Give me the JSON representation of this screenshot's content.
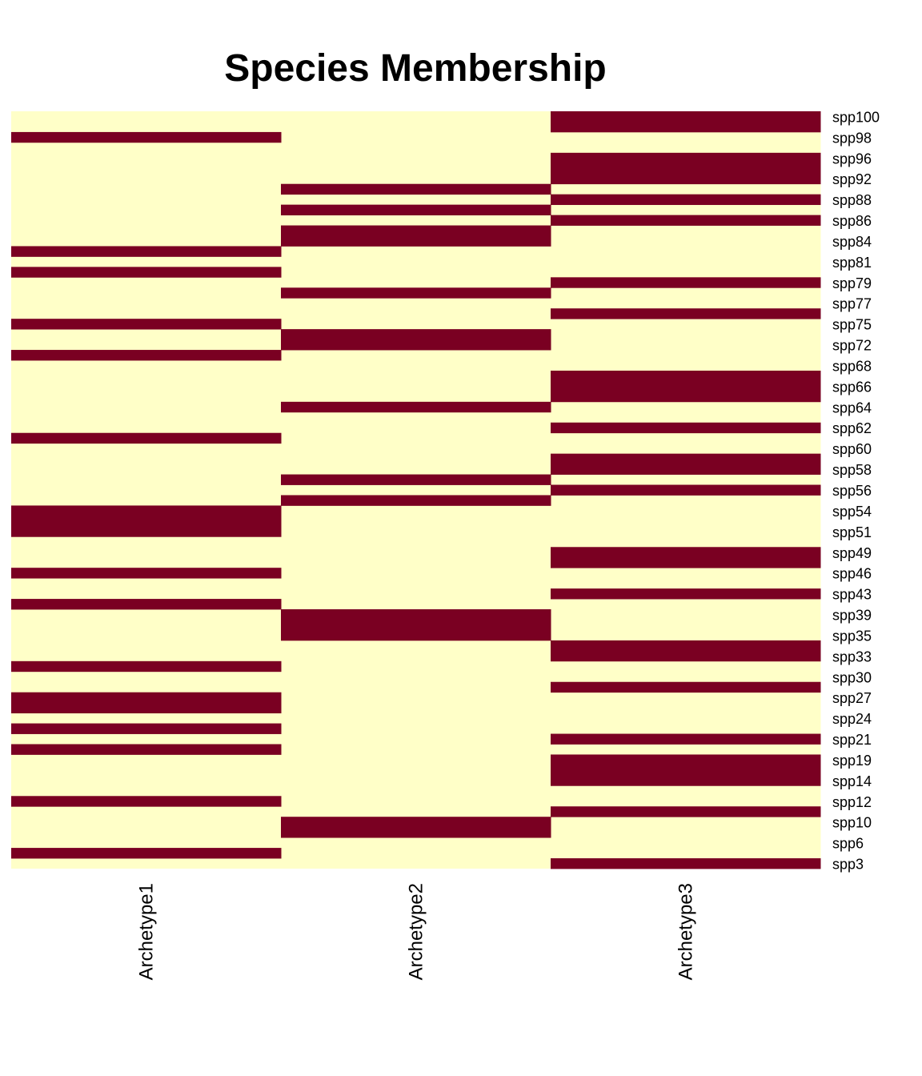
{
  "chart_data": {
    "type": "heatmap",
    "title": "Species Membership",
    "xlabel": "",
    "ylabel": "",
    "grid": false,
    "legend": "none",
    "columns": [
      "Archetype1",
      "Archetype2",
      "Archetype3"
    ],
    "row_labels_shown": [
      "spp100",
      "spp98",
      "spp96",
      "spp92",
      "spp88",
      "spp86",
      "spp84",
      "spp81",
      "spp79",
      "spp77",
      "spp75",
      "spp72",
      "spp68",
      "spp66",
      "spp64",
      "spp62",
      "spp60",
      "spp58",
      "spp56",
      "spp54",
      "spp51",
      "spp49",
      "spp46",
      "spp43",
      "spp39",
      "spp35",
      "spp33",
      "spp30",
      "spp27",
      "spp24",
      "spp21",
      "spp19",
      "spp14",
      "spp12",
      "spp10",
      "spp6",
      "spp3"
    ],
    "rows_count": 73,
    "membership_row_order": "top-to-bottom",
    "membership": [
      [
        0,
        0,
        1
      ],
      [
        0,
        0,
        1
      ],
      [
        1,
        0,
        0
      ],
      [
        0,
        0,
        0
      ],
      [
        0,
        0,
        1
      ],
      [
        0,
        0,
        1
      ],
      [
        0,
        0,
        1
      ],
      [
        0,
        1,
        0
      ],
      [
        0,
        0,
        1
      ],
      [
        0,
        1,
        0
      ],
      [
        0,
        0,
        1
      ],
      [
        0,
        1,
        0
      ],
      [
        0,
        1,
        0
      ],
      [
        1,
        0,
        0
      ],
      [
        0,
        0,
        0
      ],
      [
        1,
        0,
        0
      ],
      [
        0,
        0,
        1
      ],
      [
        0,
        1,
        0
      ],
      [
        0,
        0,
        0
      ],
      [
        0,
        0,
        1
      ],
      [
        1,
        0,
        0
      ],
      [
        0,
        1,
        0
      ],
      [
        0,
        1,
        0
      ],
      [
        1,
        0,
        0
      ],
      [
        0,
        0,
        0
      ],
      [
        0,
        0,
        1
      ],
      [
        0,
        0,
        1
      ],
      [
        0,
        0,
        1
      ],
      [
        0,
        1,
        0
      ],
      [
        0,
        0,
        0
      ],
      [
        0,
        0,
        1
      ],
      [
        1,
        0,
        0
      ],
      [
        0,
        0,
        0
      ],
      [
        0,
        0,
        1
      ],
      [
        0,
        0,
        1
      ],
      [
        0,
        1,
        0
      ],
      [
        0,
        0,
        1
      ],
      [
        0,
        1,
        0
      ],
      [
        1,
        0,
        0
      ],
      [
        1,
        0,
        0
      ],
      [
        1,
        0,
        0
      ],
      [
        0,
        0,
        0
      ],
      [
        0,
        0,
        1
      ],
      [
        0,
        0,
        1
      ],
      [
        1,
        0,
        0
      ],
      [
        0,
        0,
        0
      ],
      [
        0,
        0,
        1
      ],
      [
        1,
        0,
        0
      ],
      [
        0,
        1,
        0
      ],
      [
        0,
        1,
        0
      ],
      [
        0,
        1,
        0
      ],
      [
        0,
        0,
        1
      ],
      [
        0,
        0,
        1
      ],
      [
        1,
        0,
        0
      ],
      [
        0,
        0,
        0
      ],
      [
        0,
        0,
        1
      ],
      [
        1,
        0,
        0
      ],
      [
        1,
        0,
        0
      ],
      [
        0,
        0,
        0
      ],
      [
        1,
        0,
        0
      ],
      [
        0,
        0,
        1
      ],
      [
        1,
        0,
        0
      ],
      [
        0,
        0,
        1
      ],
      [
        0,
        0,
        1
      ],
      [
        0,
        0,
        1
      ],
      [
        0,
        0,
        0
      ],
      [
        1,
        0,
        0
      ],
      [
        0,
        0,
        1
      ],
      [
        0,
        1,
        0
      ],
      [
        0,
        1,
        0
      ],
      [
        0,
        0,
        0
      ],
      [
        1,
        0,
        0
      ],
      [
        0,
        0,
        1
      ]
    ],
    "colors": {
      "member": "#7a0022",
      "non_member": "#ffffc8"
    }
  }
}
